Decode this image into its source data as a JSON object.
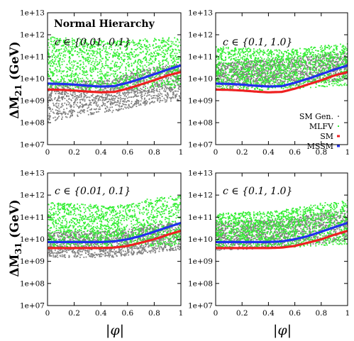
{
  "figure": {
    "annotation": "Normal Hierarchy",
    "xlabel": "|φ|"
  },
  "chart_data": [
    {
      "type": "scatter",
      "panel": "top-left",
      "ylabel": "ΔM21 (GeV)",
      "label": "c ∈ {0.01, 0.1}",
      "x_ticks": [
        "0",
        "0.2",
        "0.4",
        "0.6",
        "0.8",
        "1"
      ],
      "y_ticks": [
        "1e+07",
        "1e+08",
        "1e+09",
        "1e+10",
        "1e+11",
        "1e+12",
        "1e+13"
      ],
      "xlim": [
        0,
        1
      ],
      "ylim_log10": [
        7,
        13
      ],
      "y_scale": "log",
      "series": [
        {
          "name": "SM Gen.",
          "color": "#808080",
          "kind": "points",
          "x": [
            0,
            0.5,
            1
          ],
          "y_min": [
            100000000.0,
            300000000.0,
            1000000000.0
          ],
          "y_max": [
            8000000000.0,
            9000000000.0,
            50000000000.0
          ]
        },
        {
          "name": "MLFV",
          "color": "#33ee33",
          "kind": "points",
          "x": [
            0,
            0.5,
            1
          ],
          "y_min": [
            3000000000.0,
            3000000000.0,
            4000000000.0
          ],
          "y_max": [
            800000000000.0,
            500000000000.0,
            800000000000.0
          ]
        },
        {
          "name": "SM",
          "color": "#ee2020",
          "kind": "curve",
          "x": [
            0,
            0.1,
            0.2,
            0.3,
            0.4,
            0.5,
            0.6,
            0.7,
            0.8,
            0.9,
            1.0
          ],
          "y": [
            3200000000.0,
            3100000000.0,
            2900000000.0,
            2600000000.0,
            2400000000.0,
            2500000000.0,
            3500000000.0,
            5500000000.0,
            8500000000.0,
            14000000000.0,
            20000000000.0
          ]
        },
        {
          "name": "MSSM",
          "color": "#2030ee",
          "kind": "curve",
          "x": [
            0,
            0.1,
            0.2,
            0.3,
            0.4,
            0.5,
            0.6,
            0.7,
            0.8,
            0.9,
            1.0
          ],
          "y": [
            6000000000.0,
            5800000000.0,
            5400000000.0,
            4800000000.0,
            4400000000.0,
            4600000000.0,
            6500000000.0,
            10000000000.0,
            16000000000.0,
            26000000000.0,
            40000000000.0
          ]
        }
      ]
    },
    {
      "type": "scatter",
      "panel": "top-right",
      "ylabel": "",
      "label": "c ∈ {0.1, 1.0}",
      "x_ticks": [
        "0",
        "0.2",
        "0.4",
        "0.6",
        "0.8",
        "1"
      ],
      "y_ticks": [
        "1e+07",
        "1e+08",
        "1e+09",
        "1e+10",
        "1e+11",
        "1e+12",
        "1e+13"
      ],
      "xlim": [
        0,
        1
      ],
      "ylim_log10": [
        7,
        13
      ],
      "y_scale": "log",
      "legend": {
        "position": "lower-right",
        "entries": [
          "SM Gen.",
          "MLFV",
          "SM",
          "MSSM"
        ]
      },
      "series": [
        {
          "name": "SM Gen.",
          "color": "#808080",
          "kind": "points",
          "x": [
            0,
            0.5,
            1
          ],
          "y_min": [
            4000000000.0,
            4000000000.0,
            8000000000.0
          ],
          "y_max": [
            50000000000.0,
            80000000000.0,
            150000000000.0
          ]
        },
        {
          "name": "MLFV",
          "color": "#33ee33",
          "kind": "points",
          "x": [
            0,
            0.5,
            1
          ],
          "y_min": [
            3000000000.0,
            3000000000.0,
            5000000000.0
          ],
          "y_max": [
            300000000000.0,
            200000000000.0,
            400000000000.0
          ]
        },
        {
          "name": "SM",
          "color": "#ee2020",
          "kind": "curve",
          "x": [
            0,
            0.1,
            0.2,
            0.3,
            0.4,
            0.5,
            0.6,
            0.7,
            0.8,
            0.9,
            1.0
          ],
          "y": [
            3200000000.0,
            3100000000.0,
            2900000000.0,
            2600000000.0,
            2400000000.0,
            2500000000.0,
            3500000000.0,
            5500000000.0,
            8500000000.0,
            14000000000.0,
            20000000000.0
          ]
        },
        {
          "name": "MSSM",
          "color": "#2030ee",
          "kind": "curve",
          "x": [
            0,
            0.1,
            0.2,
            0.3,
            0.4,
            0.5,
            0.6,
            0.7,
            0.8,
            0.9,
            1.0
          ],
          "y": [
            6000000000.0,
            5800000000.0,
            5400000000.0,
            4800000000.0,
            4400000000.0,
            4600000000.0,
            6500000000.0,
            10000000000.0,
            16000000000.0,
            26000000000.0,
            40000000000.0
          ]
        }
      ]
    },
    {
      "type": "scatter",
      "panel": "bottom-left",
      "ylabel": "ΔM31 (GeV)",
      "label": "c ∈ {0.01, 0.1}",
      "x_ticks": [
        "0",
        "0.2",
        "0.4",
        "0.6",
        "0.8",
        "1"
      ],
      "y_ticks": [
        "1e+07",
        "1e+08",
        "1e+09",
        "1e+10",
        "1e+11",
        "1e+12",
        "1e+13"
      ],
      "xlim": [
        0,
        1
      ],
      "ylim_log10": [
        7,
        13
      ],
      "y_scale": "log",
      "series": [
        {
          "name": "SM Gen.",
          "color": "#808080",
          "kind": "points",
          "x": [
            0,
            0.5,
            1
          ],
          "y_min": [
            1500000000.0,
            1500000000.0,
            3000000000.0
          ],
          "y_max": [
            20000000000.0,
            25000000000.0,
            60000000000.0
          ]
        },
        {
          "name": "MLFV",
          "color": "#33ee33",
          "kind": "points",
          "x": [
            0,
            0.5,
            1
          ],
          "y_min": [
            4000000000.0,
            4000000000.0,
            5000000000.0
          ],
          "y_max": [
            500000000000.0,
            300000000000.0,
            1000000000000.0
          ]
        },
        {
          "name": "SM",
          "color": "#ee2020",
          "kind": "curve",
          "x": [
            0,
            0.1,
            0.2,
            0.3,
            0.4,
            0.5,
            0.6,
            0.7,
            0.8,
            0.9,
            1.0
          ],
          "y": [
            4000000000.0,
            4000000000.0,
            4000000000.0,
            4000000000.0,
            4000000000.0,
            4200000000.0,
            5000000000.0,
            7000000000.0,
            10000000000.0,
            16000000000.0,
            24000000000.0
          ]
        },
        {
          "name": "MSSM",
          "color": "#2030ee",
          "kind": "curve",
          "x": [
            0,
            0.1,
            0.2,
            0.3,
            0.4,
            0.5,
            0.6,
            0.7,
            0.8,
            0.9,
            1.0
          ],
          "y": [
            7500000000.0,
            7500000000.0,
            7500000000.0,
            7500000000.0,
            7500000000.0,
            8000000000.0,
            10000000000.0,
            14000000000.0,
            22000000000.0,
            35000000000.0,
            55000000000.0
          ]
        }
      ]
    },
    {
      "type": "scatter",
      "panel": "bottom-right",
      "ylabel": "",
      "label": "c ∈ {0.1, 1.0}",
      "x_ticks": [
        "0",
        "0.2",
        "0.4",
        "0.6",
        "0.8",
        "1"
      ],
      "y_ticks": [
        "1e+07",
        "1e+08",
        "1e+09",
        "1e+10",
        "1e+11",
        "1e+12",
        "1e+13"
      ],
      "xlim": [
        0,
        1
      ],
      "ylim_log10": [
        7,
        13
      ],
      "y_scale": "log",
      "series": [
        {
          "name": "SM Gen.",
          "color": "#808080",
          "kind": "points",
          "x": [
            0,
            0.5,
            1
          ],
          "y_min": [
            3000000000.0,
            4000000000.0,
            8000000000.0
          ],
          "y_max": [
            60000000000.0,
            80000000000.0,
            200000000000.0
          ]
        },
        {
          "name": "MLFV",
          "color": "#33ee33",
          "kind": "points",
          "x": [
            0,
            0.5,
            1
          ],
          "y_min": [
            4000000000.0,
            4000000000.0,
            6000000000.0
          ],
          "y_max": [
            150000000000.0,
            200000000000.0,
            600000000000.0
          ]
        },
        {
          "name": "SM",
          "color": "#ee2020",
          "kind": "curve",
          "x": [
            0,
            0.1,
            0.2,
            0.3,
            0.4,
            0.5,
            0.6,
            0.7,
            0.8,
            0.9,
            1.0
          ],
          "y": [
            4000000000.0,
            4000000000.0,
            4000000000.0,
            4000000000.0,
            4000000000.0,
            4200000000.0,
            5000000000.0,
            7000000000.0,
            10000000000.0,
            16000000000.0,
            24000000000.0
          ]
        },
        {
          "name": "MSSM",
          "color": "#2030ee",
          "kind": "curve",
          "x": [
            0,
            0.1,
            0.2,
            0.3,
            0.4,
            0.5,
            0.6,
            0.7,
            0.8,
            0.9,
            1.0
          ],
          "y": [
            7500000000.0,
            7500000000.0,
            7500000000.0,
            7500000000.0,
            7500000000.0,
            8000000000.0,
            10000000000.0,
            14000000000.0,
            22000000000.0,
            35000000000.0,
            55000000000.0
          ]
        }
      ]
    }
  ]
}
